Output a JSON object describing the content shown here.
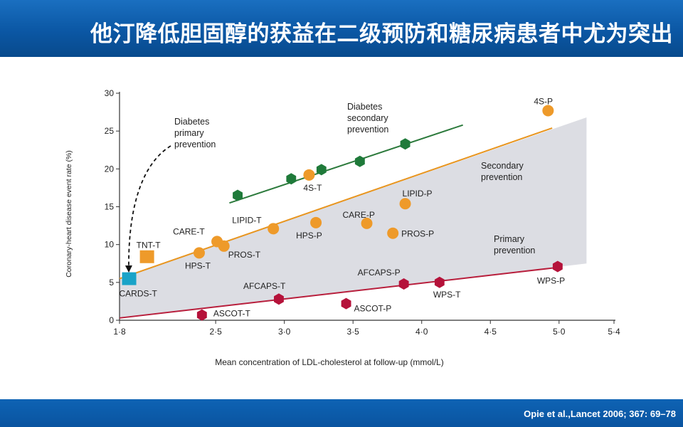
{
  "page": {
    "title": "他汀降低胆固醇的获益在二级预防和糖尿病患者中尤为突出",
    "citation": "Opie et al.,Lancet 2006; 367: 69–78"
  },
  "colors": {
    "secondary_line": "#e8951f",
    "diabetes_line": "#2c7a3c",
    "primary_line": "#b81e3c",
    "shade": "#dcdde3",
    "green_point": "#1f7a3a",
    "orange_point": "#ee9a2a",
    "red_point": "#b5123a",
    "cyan_point": "#19a3c8"
  },
  "chart_data": {
    "type": "scatter",
    "xlabel": "Mean concentration of LDL-cholesterol at follow-up (mmol/L)",
    "ylabel": "Coronary-heart disease event rate (%)",
    "xlim": [
      1.8,
      5.4
    ],
    "ylim": [
      0,
      30
    ],
    "xticks": [
      1.8,
      2.5,
      3.0,
      3.5,
      4.0,
      4.5,
      5.0,
      5.4
    ],
    "xtick_labels": [
      "1·8",
      "2·5",
      "3·0",
      "3·5",
      "4·0",
      "4·5",
      "5·0",
      "5·4"
    ],
    "yticks": [
      0,
      5,
      10,
      15,
      20,
      25,
      30
    ],
    "ytick_labels": [
      "0",
      "5",
      "10",
      "15",
      "20",
      "25",
      "30"
    ],
    "shaded_region": [
      [
        1.8,
        5.5
      ],
      [
        5.2,
        26.8
      ],
      [
        5.2,
        7.5
      ],
      [
        1.8,
        0.3
      ]
    ],
    "lines": [
      {
        "name": "Diabetes secondary prevention",
        "color": "#2c7a3c",
        "x": [
          2.6,
          4.3
        ],
        "y": [
          15.5,
          25.8
        ]
      },
      {
        "name": "Secondary prevention",
        "color": "#e8951f",
        "x": [
          1.8,
          4.95
        ],
        "y": [
          5.5,
          25.4
        ]
      },
      {
        "name": "Primary prevention",
        "color": "#b81e3c",
        "x": [
          1.8,
          5.0
        ],
        "y": [
          0.3,
          7.0
        ]
      }
    ],
    "series": [
      {
        "name": "Diabetes secondary prevention",
        "marker": "hexagon",
        "color": "#1f7a3a",
        "points": [
          {
            "label": "",
            "x": 2.66,
            "y": 16.5
          },
          {
            "label": "",
            "x": 3.05,
            "y": 18.7
          },
          {
            "label": "",
            "x": 3.27,
            "y": 19.9
          },
          {
            "label": "",
            "x": 3.55,
            "y": 21.0
          },
          {
            "label": "",
            "x": 3.88,
            "y": 23.3
          }
        ]
      },
      {
        "name": "Secondary prevention",
        "marker": "circle",
        "color": "#ee9a2a",
        "points": [
          {
            "label": "TNT-T",
            "x": 2.0,
            "y": 8.3,
            "marker": "square"
          },
          {
            "label": "CARE-T",
            "x": 2.51,
            "y": 10.4
          },
          {
            "label": "PROS-T",
            "x": 2.56,
            "y": 9.8
          },
          {
            "label": "HPS-T",
            "x": 2.38,
            "y": 8.9
          },
          {
            "label": "LIPID-T",
            "x": 2.92,
            "y": 12.1
          },
          {
            "label": "4S-T",
            "x": 3.18,
            "y": 19.2
          },
          {
            "label": "HPS-P",
            "x": 3.23,
            "y": 12.9
          },
          {
            "label": "CARE-P",
            "x": 3.6,
            "y": 12.8
          },
          {
            "label": "PROS-P",
            "x": 3.79,
            "y": 11.5
          },
          {
            "label": "LIPID-P",
            "x": 3.88,
            "y": 15.4
          },
          {
            "label": "4S-P",
            "x": 4.92,
            "y": 27.7
          }
        ]
      },
      {
        "name": "Diabetes primary prevention",
        "marker": "square",
        "color": "#19a3c8",
        "points": [
          {
            "label": "CARDS-T",
            "x": 1.87,
            "y": 5.4
          }
        ]
      },
      {
        "name": "Primary prevention",
        "marker": "hexagon",
        "color": "#b5123a",
        "points": [
          {
            "label": "ASCOT-T",
            "x": 2.4,
            "y": 0.7
          },
          {
            "label": "AFCAPS-T",
            "x": 2.96,
            "y": 2.8
          },
          {
            "label": "ASCOT-P",
            "x": 3.45,
            "y": 2.2
          },
          {
            "label": "AFCAPS-P",
            "x": 3.87,
            "y": 4.8
          },
          {
            "label": "WPS-T",
            "x": 4.13,
            "y": 5.0
          },
          {
            "label": "WPS-P",
            "x": 4.99,
            "y": 7.1
          }
        ]
      }
    ],
    "annotations": [
      {
        "id": "diabetes-primary",
        "lines": [
          "Diabetes",
          "primary",
          "prevention"
        ]
      },
      {
        "id": "diabetes-secondary",
        "lines": [
          "Diabetes",
          "secondary",
          "prevention"
        ]
      },
      {
        "id": "secondary",
        "lines": [
          "Secondary",
          "prevention"
        ]
      },
      {
        "id": "primary",
        "lines": [
          "Primary",
          "prevention"
        ]
      }
    ]
  }
}
